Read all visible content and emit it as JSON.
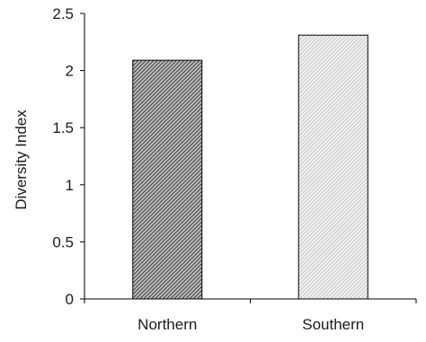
{
  "chart_data": {
    "type": "bar",
    "categories": [
      "Northern",
      "Southern"
    ],
    "values": [
      2.09,
      2.31
    ],
    "ylabel": "Diversity Index",
    "xlabel": "",
    "ylim": [
      0,
      2.5
    ],
    "yticks": [
      0,
      0.5,
      1,
      1.5,
      2,
      2.5
    ],
    "ytick_labels": [
      "0",
      "0.5",
      "1",
      "1.5",
      "2",
      "2.5"
    ],
    "grid": false,
    "legend": "none",
    "bar_fills": [
      "dense-hatch-dark",
      "fine-hatch-light"
    ],
    "bar_colors": [
      "#555555",
      "#d6d6d6"
    ]
  }
}
